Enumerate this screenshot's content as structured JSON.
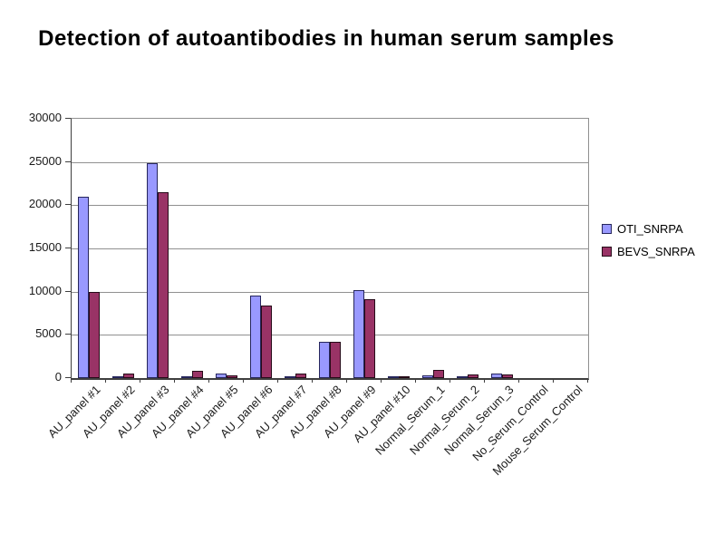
{
  "chart_data": {
    "type": "bar",
    "title": "Detection of autoantibodies in human serum samples",
    "categories": [
      "AU_panel #1",
      "AU_panel #2",
      "AU_panel #3",
      "AU_panel #4",
      "AU_panel #5",
      "AU_panel #6",
      "AU_panel #7",
      "AU_panel #8",
      "AU_panel #9",
      "AU_panel #10",
      "Normal_Serum_1",
      "Normal_Serum_2",
      "Normal_Serum_3",
      "No_Serum_Control",
      "Mouse_Serum_Control"
    ],
    "series": [
      {
        "name": "OTI_SNRPA",
        "color": "#9999FF",
        "border_color": "#26265c",
        "values": [
          21000,
          200,
          24900,
          200,
          500,
          9500,
          150,
          4200,
          10200,
          250,
          350,
          150,
          500,
          0,
          0
        ]
      },
      {
        "name": "BEVS_SNRPA",
        "color": "#993366",
        "border_color": "#260a18",
        "values": [
          10000,
          500,
          21500,
          800,
          300,
          8400,
          500,
          4200,
          9100,
          250,
          900,
          400,
          450,
          0,
          0
        ]
      }
    ],
    "ylim": [
      0,
      30000
    ],
    "ytick_step": 5000,
    "ytick_labels": [
      "0",
      "5000",
      "10000",
      "15000",
      "20000",
      "25000",
      "30000"
    ],
    "xlabel": "",
    "ylabel": "",
    "grid": true,
    "grid_color": "#909090",
    "axis_color": "#3f3f3f",
    "plot_background": "#ffffff",
    "legend_position": "right"
  }
}
